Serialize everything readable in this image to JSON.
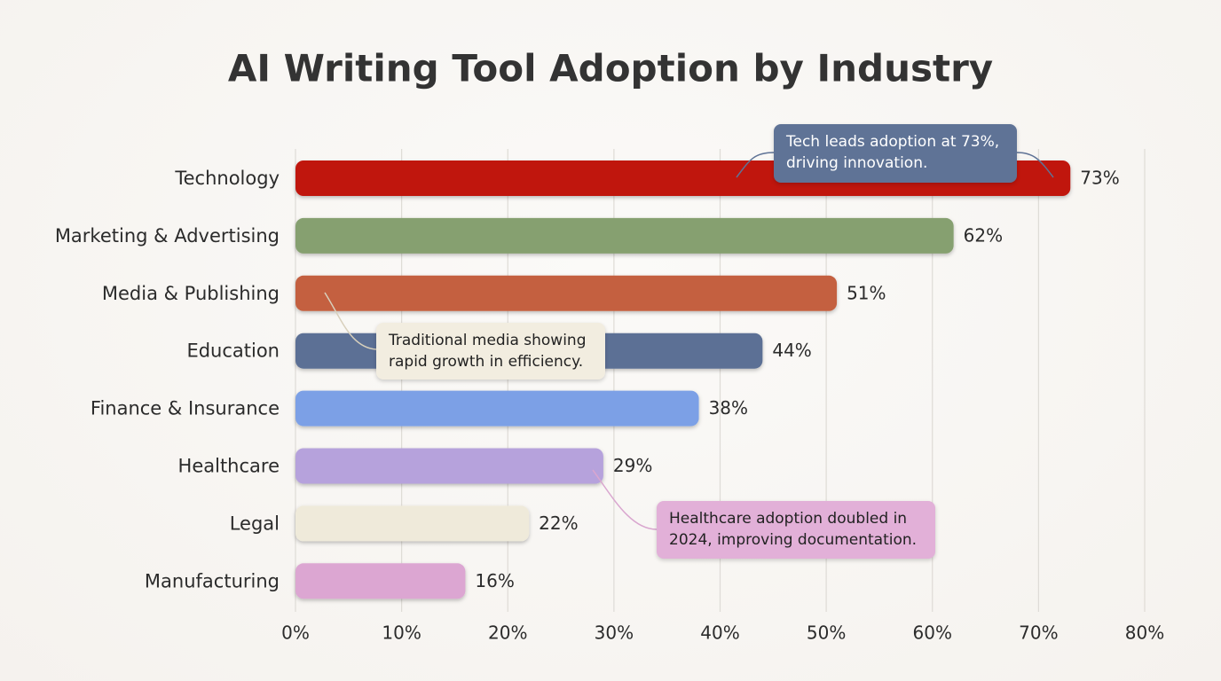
{
  "chart_data": {
    "type": "bar",
    "orientation": "horizontal",
    "title": "AI Writing Tool Adoption by Industry",
    "categories": [
      "Technology",
      "Marketing & Advertising",
      "Media & Publishing",
      "Education",
      "Finance & Insurance",
      "Healthcare",
      "Legal",
      "Manufacturing"
    ],
    "values": [
      73,
      62,
      51,
      44,
      38,
      29,
      22,
      16
    ],
    "value_labels": [
      "73%",
      "62%",
      "51%",
      "44%",
      "38%",
      "29%",
      "22%",
      "16%"
    ],
    "colors": [
      "#c0130f",
      "#86a070",
      "#c4603f",
      "#5b6f95",
      "#7ba0e6",
      "#b6a2dc",
      "#efeada",
      "#dca6d2"
    ],
    "xlim": [
      0,
      80
    ],
    "xticks": [
      {
        "value": 0,
        "label": "0%"
      },
      {
        "value": 10,
        "label": "10%"
      },
      {
        "value": 20,
        "label": "20%"
      },
      {
        "value": 30,
        "label": "30%"
      },
      {
        "value": 40,
        "label": "40%"
      },
      {
        "value": 50,
        "label": "50%"
      },
      {
        "value": 60,
        "label": "60%"
      },
      {
        "value": 70,
        "label": "70%"
      },
      {
        "value": 80,
        "label": "80%"
      }
    ],
    "grid": true,
    "annotations": [
      {
        "text": "Tech leads adoption at 73%, driving innovation.",
        "color": "#5f7396"
      },
      {
        "text": "Traditional media showing rapid growth in efficiency.",
        "color": "#f2ede0"
      },
      {
        "text": "Healthcare adoption doubled in 2024, improving documentation.",
        "color": "#e2b0d8"
      }
    ]
  }
}
